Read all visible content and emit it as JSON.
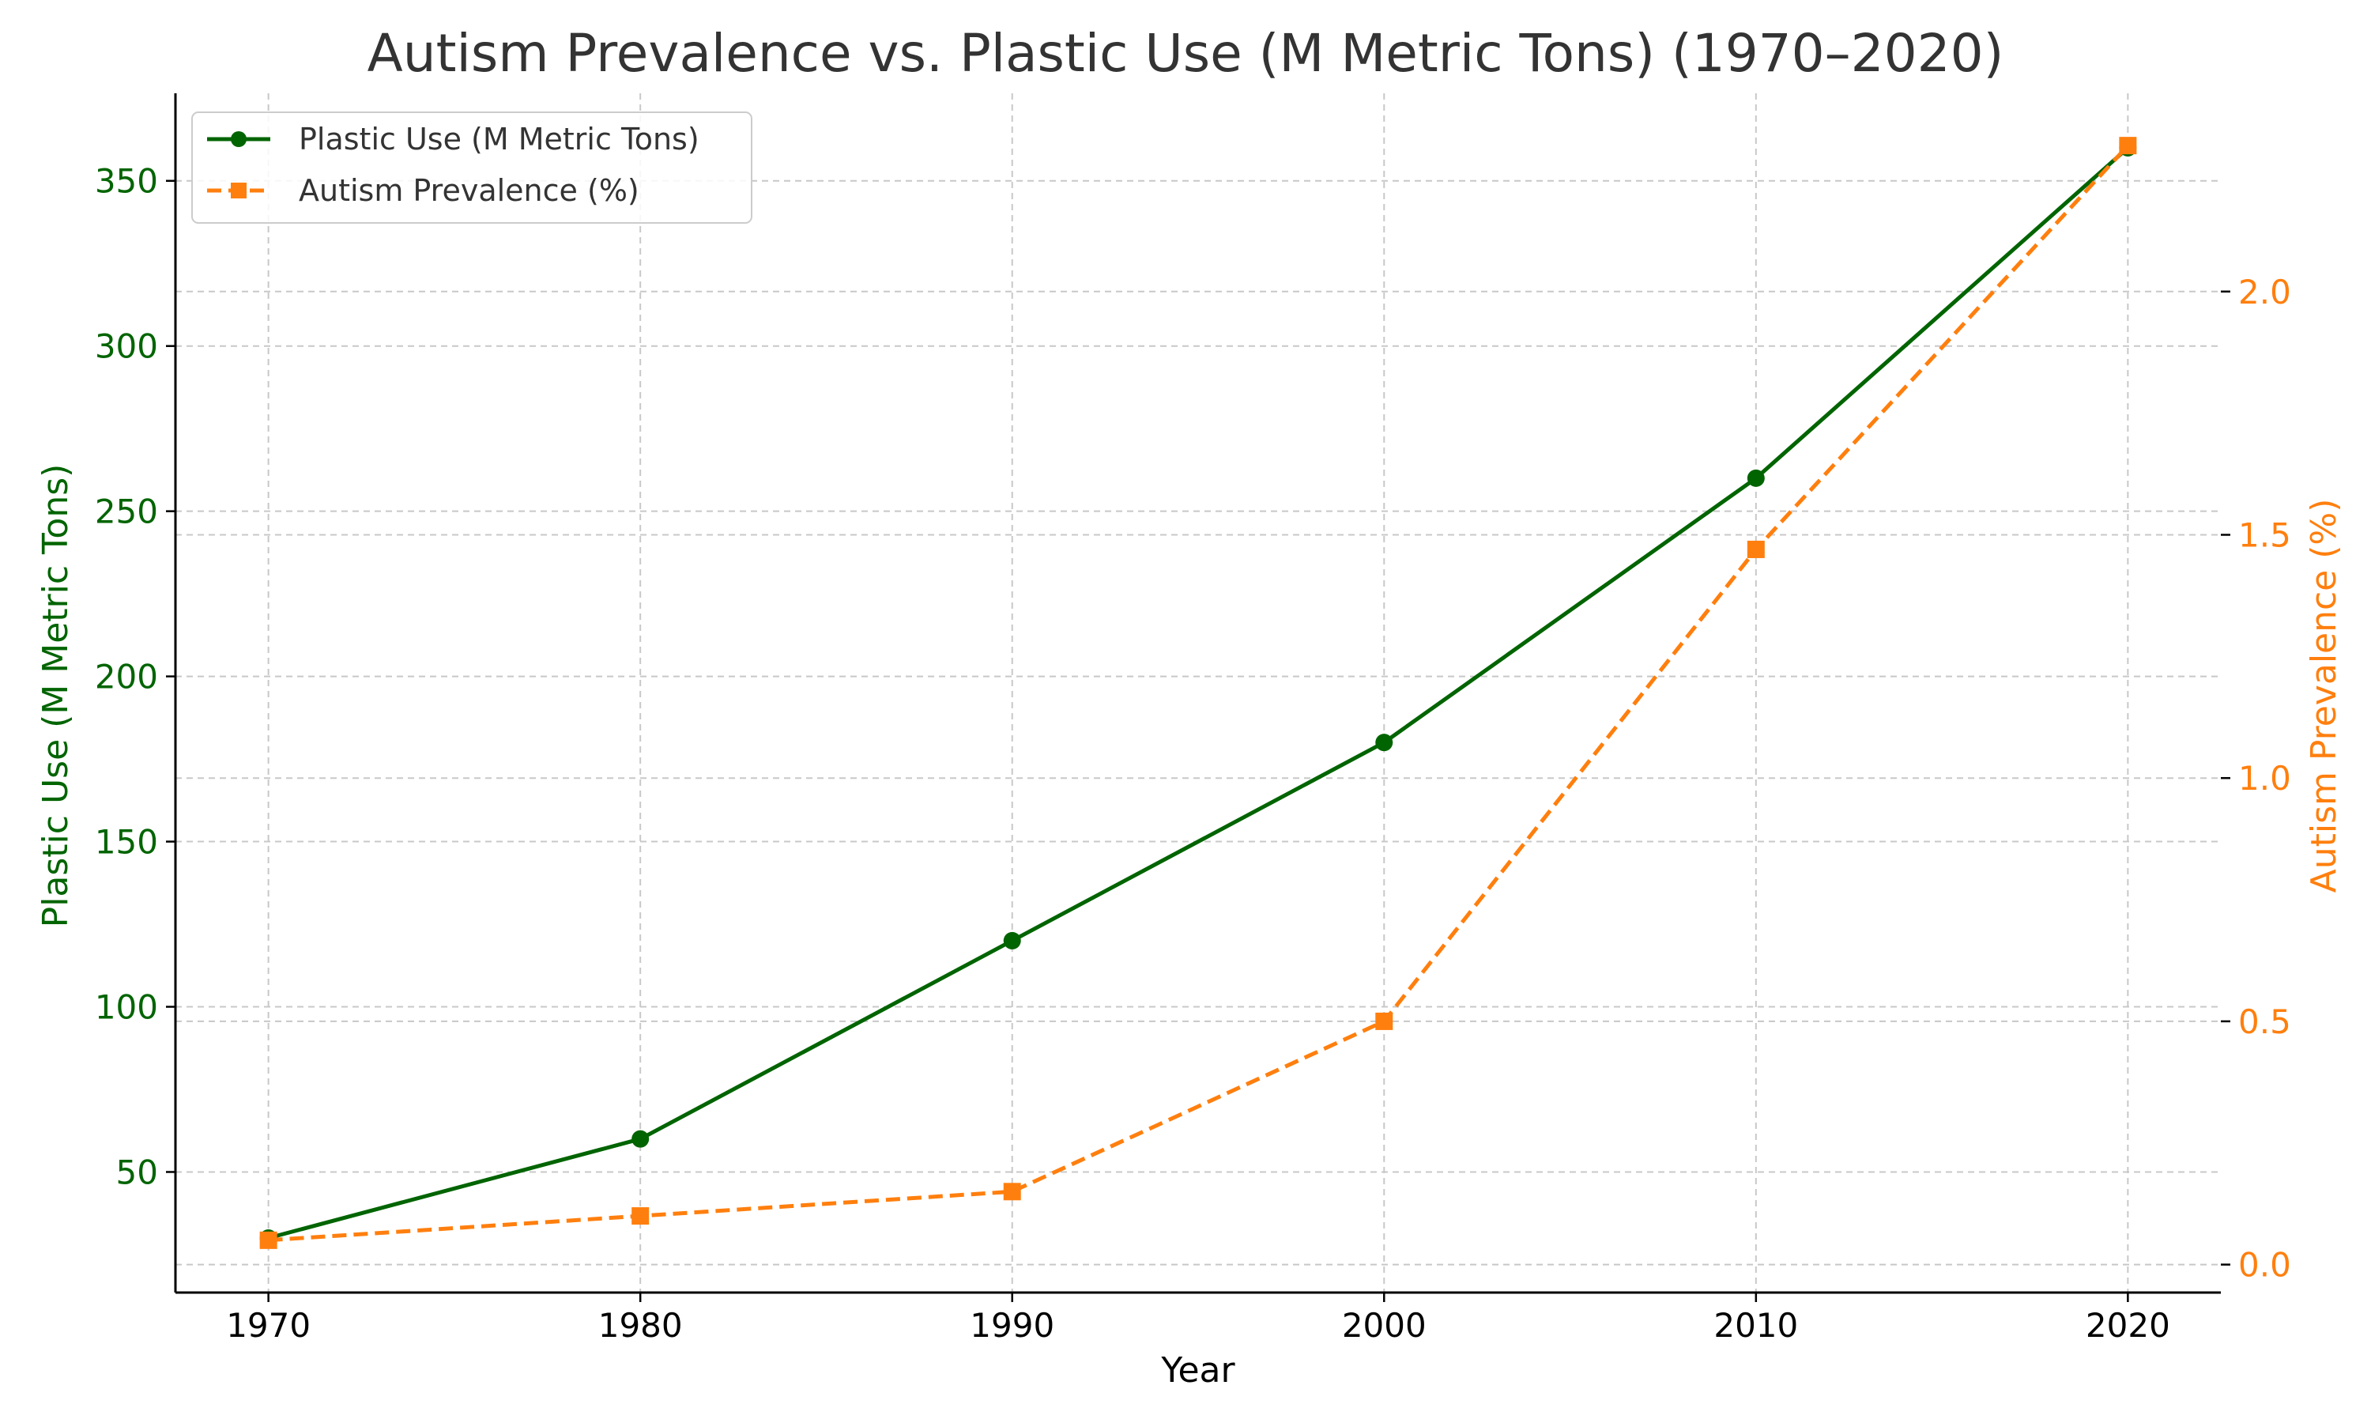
{
  "chart_data": {
    "type": "line",
    "title": "Autism Prevalence vs. Plastic Use (M Metric Tons) (1970–2020)",
    "xlabel": "Year",
    "ylabel_left": "Plastic Use (M Metric Tons)",
    "ylabel_right": "Autism Prevalence (%)",
    "x": [
      1970,
      1980,
      1990,
      2000,
      2010,
      2020
    ],
    "x_tick_labels": [
      "1970",
      "1980",
      "1990",
      "2000",
      "2010",
      "2020"
    ],
    "xlim": [
      1967.5,
      2022.5
    ],
    "y_left_ticks": [
      "50",
      "100",
      "150",
      "200",
      "250",
      "300",
      "350"
    ],
    "y_left_lim": [
      13.5,
      376.5
    ],
    "y_right_ticks": [
      "0.0",
      "0.5",
      "1.0",
      "1.5",
      "2.0"
    ],
    "y_right_lim": [
      -0.0575,
      2.4075
    ],
    "grid": true,
    "legend_position": "top-left",
    "series": [
      {
        "name": "Plastic Use (M Metric Tons)",
        "axis": "left",
        "values": [
          30,
          60,
          120,
          180,
          260,
          360
        ],
        "color": "#006400",
        "marker": "circle",
        "line_style": "solid"
      },
      {
        "name": "Autism Prevalence (%)",
        "axis": "right",
        "values": [
          0.05,
          0.1,
          0.15,
          0.5,
          1.47,
          2.3
        ],
        "color": "#ff7f0e",
        "marker": "square",
        "line_style": "dashed"
      }
    ]
  }
}
